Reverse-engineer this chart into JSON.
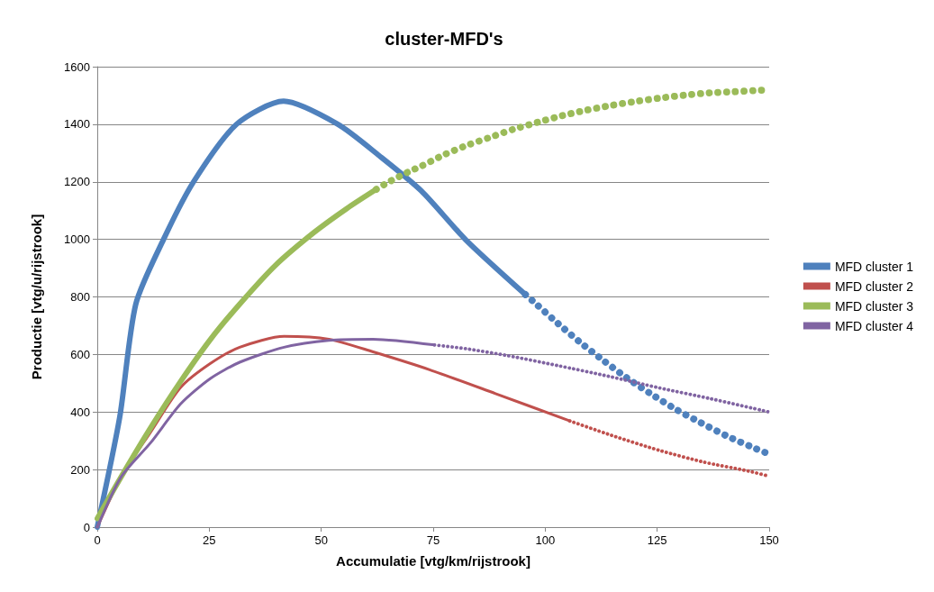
{
  "chart_data": {
    "type": "line",
    "title": "cluster-MFD's",
    "xlabel": "Accumulatie [vtg/km/rijstrook]",
    "ylabel": "Productie [vtg/u/rijstrook]",
    "xlim": [
      0,
      150
    ],
    "xticks": [
      0,
      25,
      50,
      75,
      100,
      125,
      150
    ],
    "ylim": [
      0,
      1600
    ],
    "yticks": [
      0,
      200,
      400,
      600,
      800,
      1000,
      1200,
      1400,
      1600
    ],
    "grid": "y",
    "legend": "right",
    "marker": "none",
    "series": [
      {
        "name": "MFD cluster 1",
        "color": "#4f81bd",
        "line_style": "solid",
        "x": [
          0,
          5,
          8.6,
          14.8,
          21.5,
          31.1,
          41.6,
          53.7,
          63,
          72.3,
          82.3,
          95.6
        ],
        "values": [
          0,
          381,
          775,
          1000,
          1200,
          1400,
          1480,
          1400,
          1290,
          1169,
          998,
          808
        ]
      },
      {
        "color": "#4f81bd",
        "line_style": "dotted",
        "x": [
          95.6,
          98,
          102.9,
          107.8,
          113,
          118.1,
          123.5,
          129.1,
          134.7,
          140.5,
          146.5,
          149.5
        ],
        "values": [
          808,
          775,
          707,
          642,
          579,
          520,
          464,
          410,
          363,
          317,
          276,
          257
        ]
      },
      {
        "name": "MFD cluster 2",
        "color": "#c0504d",
        "line_style": "solid",
        "x": [
          0,
          5.3,
          11.9,
          18.6,
          25.2,
          31.8,
          41.7,
          51.7,
          61.6,
          74.2,
          88.9,
          105.5
        ],
        "values": [
          0,
          174,
          330,
          485,
          568,
          625,
          663,
          653,
          609,
          547,
          464,
          369
        ]
      },
      {
        "color": "#c0504d",
        "line_style": "dotted",
        "x": [
          105.5,
          114.8,
          125.4,
          135.4,
          145.3,
          150
        ],
        "values": [
          369,
          319,
          267,
          226,
          195,
          177
        ]
      },
      {
        "name": "MFD cluster 3",
        "color": "#9bbb59",
        "line_style": "solid",
        "x": [
          0,
          5.3,
          11.9,
          18.6,
          25.2,
          31.8,
          39.8,
          48.4,
          55.7,
          62.3
        ],
        "values": [
          30,
          174,
          345,
          506,
          651,
          775,
          910,
          1024,
          1107,
          1174
        ]
      },
      {
        "color": "#9bbb59",
        "line_style": "dotted",
        "x": [
          62.3,
          64.8,
          69.8,
          72.3,
          77.3,
          82.6,
          87.8,
          93,
          98.4,
          103.8,
          109.2,
          114.6,
          120.1,
          125.6,
          131.1,
          136.7,
          142.2,
          147.8,
          150
        ],
        "values": [
          1174,
          1197,
          1237,
          1254,
          1293,
          1327,
          1355,
          1383,
          1407,
          1430,
          1449,
          1465,
          1479,
          1491,
          1501,
          1509,
          1513,
          1518,
          1519
        ]
      },
      {
        "name": "MFD cluster 4",
        "color": "#8064a2",
        "line_style": "solid",
        "x": [
          0,
          5.3,
          11.9,
          18.6,
          25.2,
          31.8,
          41.7,
          51.7,
          61.6,
          75.3
        ],
        "values": [
          0,
          174,
          293,
          428,
          516,
          573,
          625,
          649,
          653,
          633
        ]
      },
      {
        "color": "#8064a2",
        "line_style": "dotted",
        "x": [
          75.3,
          82.3,
          91.6,
          102.9,
          114.2,
          125.4,
          137,
          150
        ],
        "values": [
          633,
          620,
          596,
          561,
          524,
          484,
          446,
          400
        ]
      }
    ]
  }
}
